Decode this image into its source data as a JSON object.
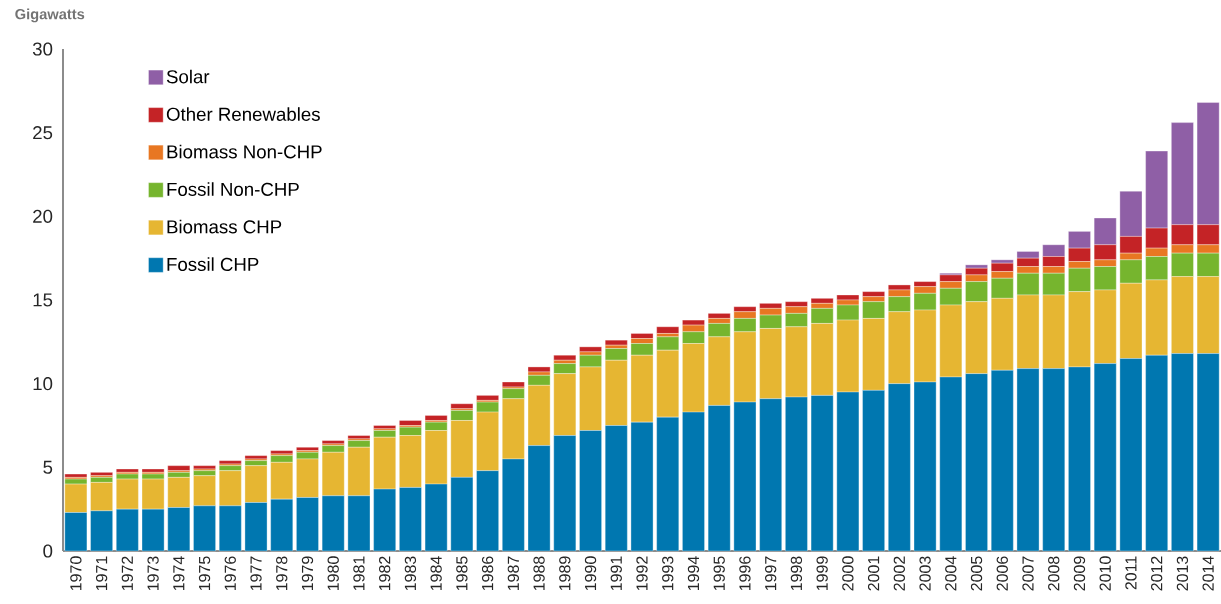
{
  "chart_data": {
    "type": "bar",
    "stacked": true,
    "ylabel": "Gigawatts",
    "categories": [
      "1970",
      "1971",
      "1972",
      "1973",
      "1974",
      "1975",
      "1976",
      "1977",
      "1978",
      "1979",
      "1980",
      "1981",
      "1982",
      "1983",
      "1984",
      "1985",
      "1986",
      "1987",
      "1988",
      "1989",
      "1990",
      "1991",
      "1992",
      "1993",
      "1994",
      "1995",
      "1996",
      "1997",
      "1998",
      "1999",
      "2000",
      "2001",
      "2002",
      "2003",
      "2004",
      "2005",
      "2006",
      "2007",
      "2008",
      "2009",
      "2010",
      "2011",
      "2012",
      "2013",
      "2014"
    ],
    "series": [
      {
        "name": "Fossil CHP",
        "color": "#0077b0",
        "values": [
          2.3,
          2.4,
          2.5,
          2.5,
          2.6,
          2.7,
          2.7,
          2.9,
          3.1,
          3.2,
          3.3,
          3.3,
          3.7,
          3.8,
          4.0,
          4.4,
          4.8,
          5.5,
          6.3,
          6.9,
          7.2,
          7.5,
          7.7,
          8.0,
          8.3,
          8.7,
          8.9,
          9.1,
          9.2,
          9.3,
          9.5,
          9.6,
          10.0,
          10.1,
          10.4,
          10.6,
          10.8,
          10.9,
          10.9,
          11.0,
          11.2,
          11.5,
          11.7,
          11.8,
          11.8
        ]
      },
      {
        "name": "Biomass CHP",
        "color": "#e6b632",
        "values": [
          1.7,
          1.7,
          1.8,
          1.8,
          1.8,
          1.8,
          2.1,
          2.2,
          2.2,
          2.3,
          2.6,
          2.9,
          3.1,
          3.1,
          3.2,
          3.4,
          3.5,
          3.6,
          3.6,
          3.7,
          3.8,
          3.9,
          4.0,
          4.0,
          4.1,
          4.1,
          4.2,
          4.2,
          4.2,
          4.3,
          4.3,
          4.3,
          4.3,
          4.3,
          4.3,
          4.3,
          4.3,
          4.4,
          4.4,
          4.5,
          4.4,
          4.5,
          4.5,
          4.6,
          4.6
        ]
      },
      {
        "name": "Fossil Non-CHP",
        "color": "#76b52e",
        "values": [
          0.3,
          0.3,
          0.3,
          0.3,
          0.3,
          0.3,
          0.3,
          0.3,
          0.4,
          0.4,
          0.4,
          0.4,
          0.4,
          0.5,
          0.5,
          0.6,
          0.6,
          0.6,
          0.6,
          0.6,
          0.7,
          0.7,
          0.7,
          0.8,
          0.7,
          0.8,
          0.8,
          0.8,
          0.8,
          0.9,
          0.9,
          1.0,
          0.9,
          1.0,
          1.0,
          1.2,
          1.2,
          1.3,
          1.3,
          1.4,
          1.4,
          1.4,
          1.4,
          1.4,
          1.4
        ]
      },
      {
        "name": "Biomass Non-CHP",
        "color": "#e87722",
        "values": [
          0.1,
          0.1,
          0.1,
          0.1,
          0.1,
          0.1,
          0.1,
          0.1,
          0.1,
          0.1,
          0.1,
          0.1,
          0.1,
          0.1,
          0.1,
          0.1,
          0.1,
          0.1,
          0.2,
          0.2,
          0.2,
          0.2,
          0.3,
          0.2,
          0.4,
          0.3,
          0.4,
          0.4,
          0.4,
          0.3,
          0.3,
          0.3,
          0.4,
          0.4,
          0.4,
          0.4,
          0.4,
          0.4,
          0.4,
          0.4,
          0.4,
          0.4,
          0.5,
          0.5,
          0.5
        ]
      },
      {
        "name": "Other Renewables",
        "color": "#c42326",
        "values": [
          0.2,
          0.2,
          0.2,
          0.2,
          0.3,
          0.2,
          0.2,
          0.2,
          0.2,
          0.2,
          0.2,
          0.2,
          0.2,
          0.3,
          0.3,
          0.3,
          0.3,
          0.3,
          0.3,
          0.3,
          0.3,
          0.3,
          0.3,
          0.4,
          0.3,
          0.3,
          0.3,
          0.3,
          0.3,
          0.3,
          0.3,
          0.3,
          0.3,
          0.3,
          0.4,
          0.4,
          0.5,
          0.5,
          0.6,
          0.8,
          0.9,
          1.0,
          1.2,
          1.2,
          1.2
        ]
      },
      {
        "name": "Solar",
        "color": "#8f5fa6",
        "values": [
          0,
          0,
          0,
          0,
          0,
          0,
          0,
          0,
          0,
          0,
          0,
          0,
          0,
          0,
          0,
          0,
          0,
          0,
          0,
          0,
          0,
          0,
          0,
          0,
          0,
          0,
          0,
          0,
          0,
          0,
          0,
          0,
          0,
          0,
          0.1,
          0.2,
          0.2,
          0.4,
          0.7,
          1.0,
          1.6,
          2.7,
          4.6,
          6.1,
          7.3
        ]
      }
    ],
    "ylim": [
      0,
      30
    ],
    "yticks": [
      0,
      5,
      10,
      15,
      20,
      25,
      30
    ],
    "legend": "top left"
  }
}
